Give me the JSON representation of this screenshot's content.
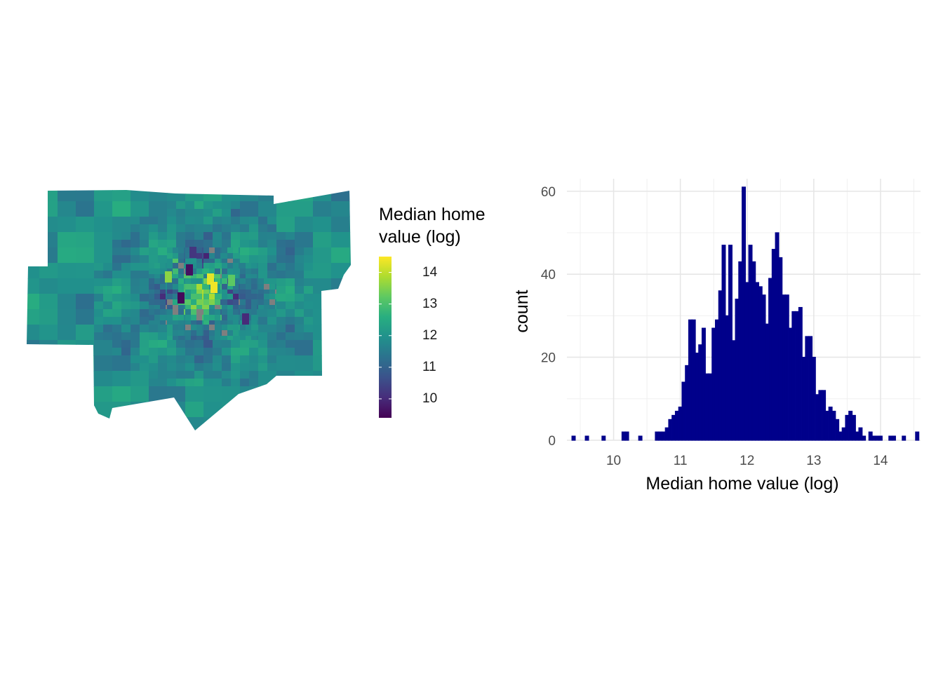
{
  "chart_data": [
    {
      "type": "heatmap",
      "legend_title": "Median home\nvalue (log)",
      "legend_title_lines": [
        "Median home",
        "value (log)"
      ],
      "legend_ticks": [
        14,
        13,
        12,
        11,
        10
      ],
      "legend_range": [
        9.4,
        14.5
      ],
      "colormap": "viridis",
      "na_color": "#7f7f7f"
    },
    {
      "type": "bar",
      "xlabel": "Median home value (log)",
      "ylabel": "count",
      "x_ticks": [
        10,
        11,
        12,
        13,
        14
      ],
      "y_ticks": [
        0,
        20,
        40,
        60
      ],
      "xlim": [
        9.3,
        14.6
      ],
      "ylim": [
        0,
        63
      ],
      "bin_width": 0.05,
      "bin_start": 9.4,
      "bar_fill": "#00008b",
      "bar_outline": "#00008b",
      "grid": true,
      "counts": [
        1,
        0,
        0,
        0,
        1,
        0,
        0,
        0,
        0,
        1,
        0,
        0,
        0,
        0,
        0,
        2,
        2,
        0,
        0,
        0,
        1,
        0,
        0,
        0,
        0,
        2,
        2,
        2,
        3,
        5,
        6,
        7,
        8,
        14,
        18,
        29,
        29,
        21,
        23,
        27,
        16,
        16,
        27,
        29,
        36,
        47,
        30,
        47,
        24,
        34,
        43,
        61,
        38,
        47,
        43,
        38,
        37,
        35,
        28,
        39,
        46,
        50,
        44,
        35,
        35,
        27,
        31,
        31,
        32,
        20,
        25,
        25,
        20,
        11,
        12,
        12,
        7,
        8,
        7,
        5,
        2,
        3,
        6,
        7,
        6,
        2,
        3,
        1,
        0,
        2,
        1,
        1,
        1,
        0,
        0,
        1,
        1,
        0,
        0,
        1,
        0,
        0,
        0,
        2
      ]
    }
  ]
}
